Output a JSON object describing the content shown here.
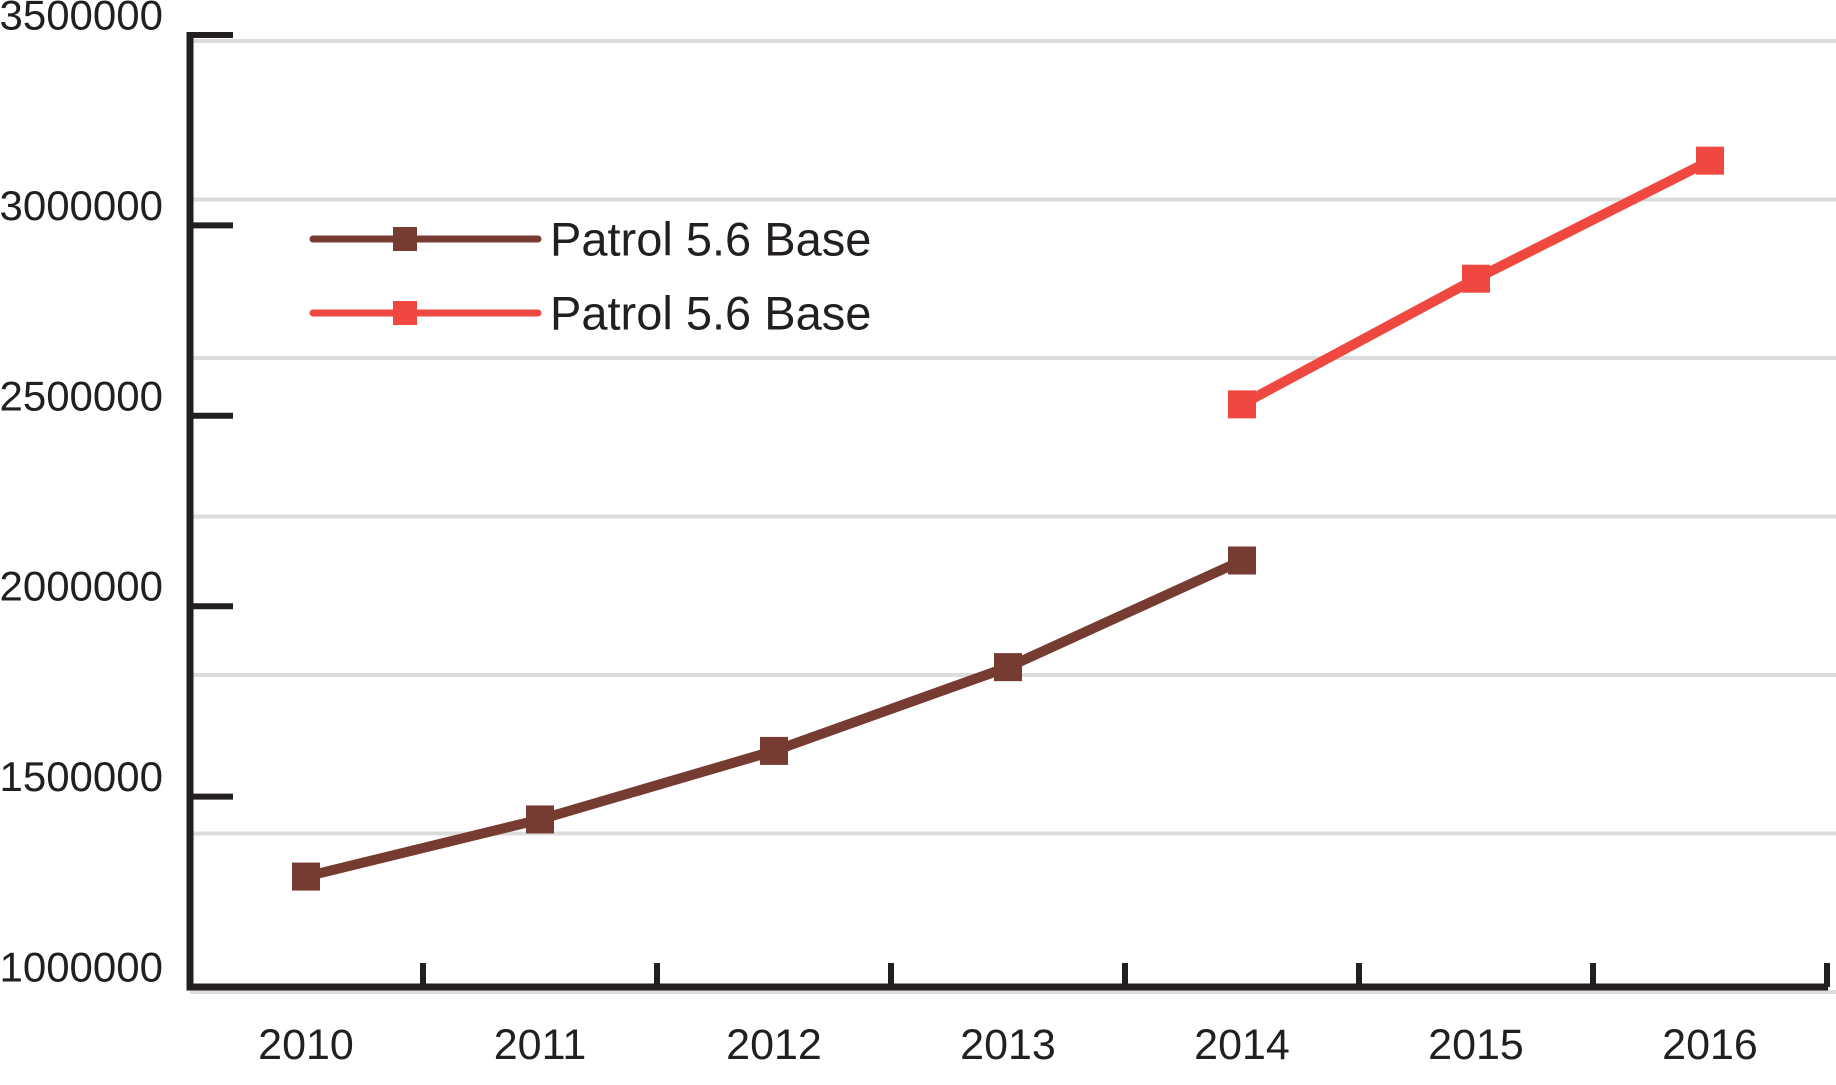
{
  "chart_data": {
    "type": "line",
    "title": "",
    "xlabel": "",
    "ylabel": "",
    "x_categories": [
      "2010",
      "2011",
      "2012",
      "2013",
      "2014",
      "2015",
      "2016"
    ],
    "y_tick_labels": [
      "1000000",
      "1500000",
      "2000000",
      "2500000",
      "3000000",
      "3500000"
    ],
    "ylim": [
      1000000,
      3500000
    ],
    "ytick_step": 500000,
    "grid": "horizontal-only",
    "gridline_count": 7,
    "legend_position": "inside-upper-left",
    "series": [
      {
        "name": "Patrol 5.6 Base",
        "color": "#763B31",
        "marker": "square",
        "x": [
          "2010",
          "2011",
          "2012",
          "2013",
          "2014"
        ],
        "values": [
          1290000,
          1440000,
          1620000,
          1840000,
          2120000
        ]
      },
      {
        "name": "Patrol 5.6 Base",
        "color": "#EE4840",
        "marker": "square",
        "x": [
          "2014",
          "2015",
          "2016"
        ],
        "values": [
          2530000,
          2860000,
          3170000
        ]
      }
    ]
  },
  "colors": {
    "background": "#FFFFFF",
    "axis": "#231F20",
    "tick_label": "#231F20",
    "legend_text": "#231F20",
    "gridline": "#DCDCDC"
  }
}
